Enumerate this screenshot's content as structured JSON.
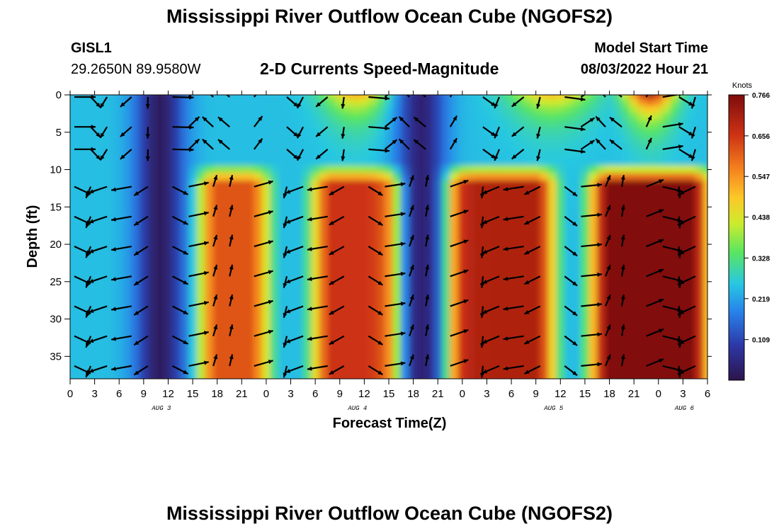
{
  "header": {
    "title": "Mississippi River Outflow Ocean Cube (NGOFS2)",
    "station_id": "GISL1",
    "station_coords": "29.2650N  89.9580W",
    "subtitle": "2-D Currents Speed-Magnitude",
    "model_start_label": "Model Start Time",
    "model_start_value": "08/03/2022 Hour 21"
  },
  "footer": {
    "repeat_title": "Mississippi River Outflow Ocean Cube (NGOFS2)"
  },
  "chart_data": {
    "type": "heatmap",
    "title": "2-D Currents Speed-Magnitude",
    "xlabel": "Forecast Time(Z)",
    "ylabel": "Depth (ft)",
    "x_unit": "forecast hours from Aug 3 00Z",
    "xlim": [
      0,
      78
    ],
    "ylim": [
      0,
      38
    ],
    "y_inverted": true,
    "x_tick_values": [
      0,
      3,
      6,
      9,
      12,
      15,
      18,
      21,
      24,
      27,
      30,
      33,
      36,
      39,
      42,
      45,
      48,
      51,
      54,
      57,
      60,
      63,
      66,
      69,
      72,
      75,
      78
    ],
    "x_tick_labels": [
      "0",
      "3",
      "6",
      "9",
      "12",
      "15",
      "18",
      "21",
      "0",
      "3",
      "6",
      "9",
      "12",
      "15",
      "18",
      "21",
      "0",
      "3",
      "6",
      "9",
      "12",
      "15",
      "18",
      "21",
      "0",
      "3",
      "6"
    ],
    "y_tick_values": [
      0,
      5,
      10,
      15,
      20,
      25,
      30,
      35
    ],
    "y_tick_labels": [
      "0",
      "5",
      "10",
      "15",
      "20",
      "25",
      "30",
      "35"
    ],
    "date_labels": [
      {
        "text": "AUG 3",
        "hour": 11
      },
      {
        "text": "AUG 4",
        "hour": 35
      },
      {
        "text": "AUG 5",
        "hour": 59
      },
      {
        "text": "AUG 6",
        "hour": 75
      }
    ],
    "colorbar": {
      "label": "Knots",
      "min": 0,
      "max": 0.766,
      "tick_values": [
        0.109,
        0.219,
        0.328,
        0.438,
        0.547,
        0.656,
        0.766
      ],
      "tick_labels": [
        "0.109",
        "0.219",
        "0.328",
        "0.438",
        "0.547",
        "0.656",
        "0.766"
      ]
    },
    "arrow_hours": [
      0,
      2,
      4,
      7,
      9,
      12,
      14,
      17,
      19,
      22,
      26,
      28,
      31,
      33,
      36,
      38,
      41,
      43,
      46,
      50,
      52,
      55,
      57,
      60,
      62,
      65,
      67,
      70,
      72,
      74,
      76
    ],
    "arrow_depths": [
      0,
      4,
      7,
      12,
      16,
      20,
      24,
      28,
      32,
      36
    ],
    "speed_features": [
      {
        "kind": "surface_max",
        "center_hour": 35,
        "width_hours": 4,
        "speed": 0.52
      },
      {
        "kind": "surface_max",
        "center_hour": 59,
        "width_hours": 5,
        "speed": 0.5
      },
      {
        "kind": "surface_max",
        "center_hour": 71,
        "width_hours": 3,
        "speed": 0.72
      },
      {
        "kind": "subsurface_core",
        "start_hour": 16,
        "end_hour": 24,
        "speed": 0.62
      },
      {
        "kind": "subsurface_core",
        "start_hour": 30,
        "end_hour": 41,
        "speed": 0.66
      },
      {
        "kind": "subsurface_core",
        "start_hour": 46,
        "end_hour": 59,
        "speed": 0.7
      },
      {
        "kind": "subsurface_core",
        "start_hour": 64,
        "end_hour": 78,
        "speed": 0.76
      },
      {
        "kind": "minimum",
        "center_hour": 11,
        "speed": 0.02
      },
      {
        "kind": "minimum",
        "center_hour": 43,
        "speed": 0.04
      }
    ]
  }
}
